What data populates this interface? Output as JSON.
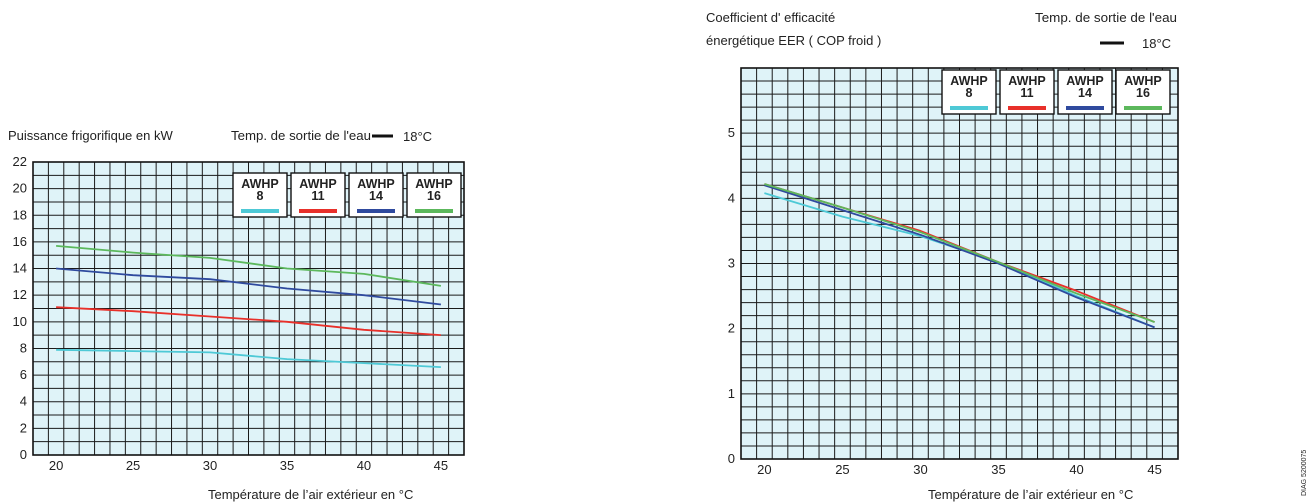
{
  "chart_data": [
    {
      "type": "line",
      "title": "Puissance frigorifique en kW",
      "subtitle": "Temp. de sortie de l'eau",
      "temp_value": "18°C",
      "xlabel": "Température de l’air extérieur en °C",
      "ylabel": "",
      "xlim": [
        18.5,
        46.5
      ],
      "ylim": [
        0,
        22
      ],
      "xticks": [
        20,
        25,
        30,
        35,
        40,
        45
      ],
      "yticks": [
        0,
        2,
        4,
        6,
        8,
        10,
        12,
        14,
        16,
        18,
        20,
        22
      ],
      "grid": true,
      "legend_position": "top-right",
      "series": [
        {
          "name": "AWHP 8",
          "line1": "AWHP",
          "line2": "8",
          "color": "#4ec9d6",
          "x": [
            20,
            25,
            30,
            35,
            40,
            45
          ],
          "y": [
            7.9,
            7.8,
            7.7,
            7.2,
            6.9,
            6.6
          ]
        },
        {
          "name": "AWHP 11",
          "line1": "AWHP",
          "line2": "11",
          "color": "#e8302a",
          "x": [
            20,
            25,
            30,
            35,
            40,
            45
          ],
          "y": [
            11.1,
            10.8,
            10.4,
            10.0,
            9.4,
            9.0
          ]
        },
        {
          "name": "AWHP 14",
          "line1": "AWHP",
          "line2": "14",
          "color": "#2f4a9e",
          "x": [
            20,
            25,
            30,
            35,
            40,
            45
          ],
          "y": [
            14.0,
            13.5,
            13.2,
            12.5,
            12.0,
            11.3
          ]
        },
        {
          "name": "AWHP 16",
          "line1": "AWHP",
          "line2": "16",
          "color": "#5cb85c",
          "x": [
            20,
            25,
            30,
            35,
            40,
            45
          ],
          "y": [
            15.7,
            15.2,
            14.8,
            14.0,
            13.6,
            12.7
          ]
        }
      ]
    },
    {
      "type": "line",
      "title": "Coefficient d' efficacité",
      "title_line2": "énergétique EER ( COP froid )",
      "subtitle": "Temp. de sortie de l'eau",
      "temp_value": "18°C",
      "xlabel": "Température de l’air extérieur en °C",
      "ylabel": "",
      "xlim": [
        18.5,
        46.5
      ],
      "ylim": [
        0,
        6
      ],
      "xticks": [
        20,
        25,
        30,
        35,
        40,
        45
      ],
      "yticks": [
        0,
        1,
        2,
        3,
        4,
        5
      ],
      "grid": true,
      "legend_position": "top-right",
      "series": [
        {
          "name": "AWHP 8",
          "line1": "AWHP",
          "line2": "8",
          "color": "#4ec9d6",
          "x": [
            20,
            25,
            30,
            35,
            40,
            45
          ],
          "y": [
            4.08,
            3.72,
            3.42,
            3.02,
            2.5,
            2.02
          ]
        },
        {
          "name": "AWHP 11",
          "line1": "AWHP",
          "line2": "11",
          "color": "#e8302a",
          "x": [
            20,
            25,
            30,
            35,
            40,
            45
          ],
          "y": [
            4.22,
            3.86,
            3.5,
            3.02,
            2.58,
            2.1
          ]
        },
        {
          "name": "AWHP 14",
          "line1": "AWHP",
          "line2": "14",
          "color": "#2f4a9e",
          "x": [
            20,
            25,
            30,
            35,
            40,
            45
          ],
          "y": [
            4.2,
            3.82,
            3.44,
            3.0,
            2.48,
            2.02
          ]
        },
        {
          "name": "AWHP 16",
          "line1": "AWHP",
          "line2": "16",
          "color": "#5cb85c",
          "x": [
            20,
            25,
            30,
            35,
            40,
            45
          ],
          "y": [
            4.22,
            3.86,
            3.48,
            3.02,
            2.54,
            2.1
          ]
        }
      ]
    }
  ],
  "side_reference": "DIAG 5200075",
  "colors": {
    "plot_bg": "#dff3f8",
    "grid": "#1a1a1a",
    "legend_bg": "#ffffff"
  }
}
